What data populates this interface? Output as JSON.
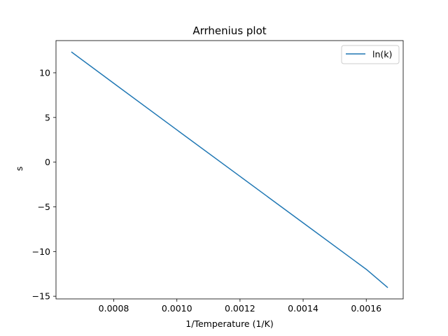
{
  "chart_data": {
    "type": "line",
    "title": "Arrhenius plot",
    "xlabel": "1/Temperature (1/K)",
    "ylabel": "s",
    "xlim": [
      0.000617,
      0.001717
    ],
    "ylim": [
      -15.3,
      13.6
    ],
    "xticks": [
      0.0008,
      0.001,
      0.0012,
      0.0014,
      0.0016
    ],
    "xtick_labels": [
      "0.0008",
      "0.0010",
      "0.0012",
      "0.0014",
      "0.0016"
    ],
    "yticks": [
      -15,
      -10,
      -5,
      0,
      5,
      10
    ],
    "ytick_labels": [
      "−15",
      "−10",
      "−5",
      "0",
      "5",
      "10"
    ],
    "grid": false,
    "legend_position": "top-right",
    "series": [
      {
        "name": "ln(k)",
        "color": "#1f77b4",
        "x": [
          0.000667,
          0.0008,
          0.001,
          0.0012,
          0.0014,
          0.0016,
          0.001667
        ],
        "y": [
          12.3,
          8.82,
          3.61,
          -1.59,
          -6.79,
          -11.99,
          -14.0
        ]
      }
    ]
  }
}
